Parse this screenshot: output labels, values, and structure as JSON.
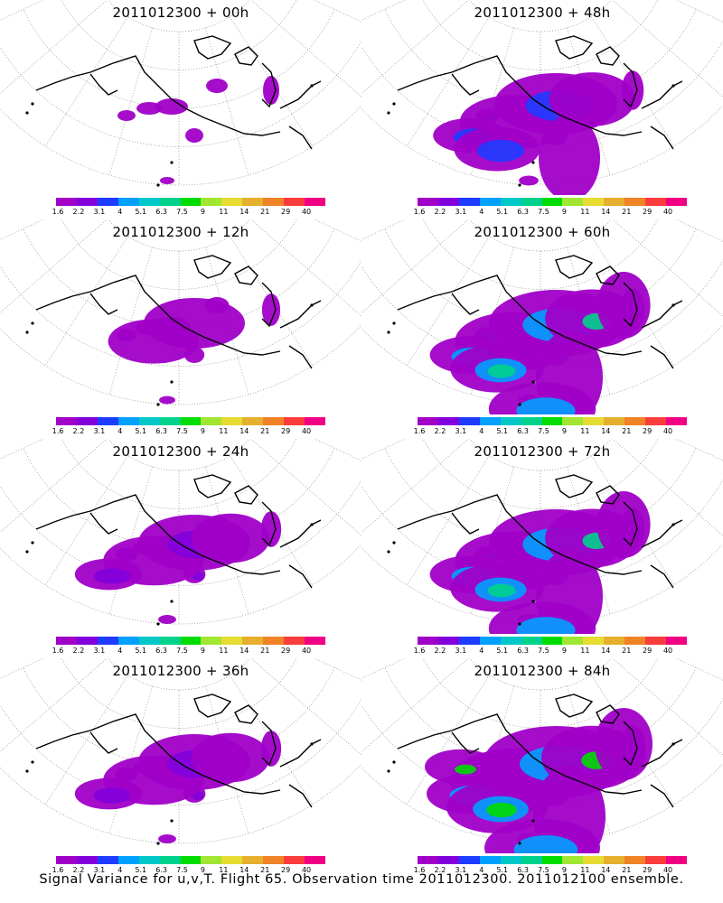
{
  "colorbar": {
    "colors": [
      "#a000c8",
      "#8200dc",
      "#1e3cff",
      "#00a0ff",
      "#00c8c8",
      "#00d28c",
      "#00dc00",
      "#a0e632",
      "#e6dc32",
      "#e6af2d",
      "#f08228",
      "#fa3c3c",
      "#f00082"
    ],
    "tick_labels": [
      "1.6",
      "2.2",
      "3.1",
      "4",
      "5.1",
      "6.3",
      "7.5",
      "9",
      "11",
      "14",
      "21",
      "29",
      "40"
    ]
  },
  "panels": [
    {
      "title": "2011012300 + 00h",
      "level": 0
    },
    {
      "title": "2011012300 + 48h",
      "level": 3
    },
    {
      "title": "2011012300 + 12h",
      "level": 1
    },
    {
      "title": "2011012300 + 60h",
      "level": 4
    },
    {
      "title": "2011012300 + 24h",
      "level": 2
    },
    {
      "title": "2011012300 + 72h",
      "level": 4
    },
    {
      "title": "2011012300 + 36h",
      "level": 2
    },
    {
      "title": "2011012300 + 84h",
      "level": 5
    }
  ],
  "caption": "Signal Variance for u,v,T. Flight 65. Observation time 2011012300. 2011012100 ensemble."
}
